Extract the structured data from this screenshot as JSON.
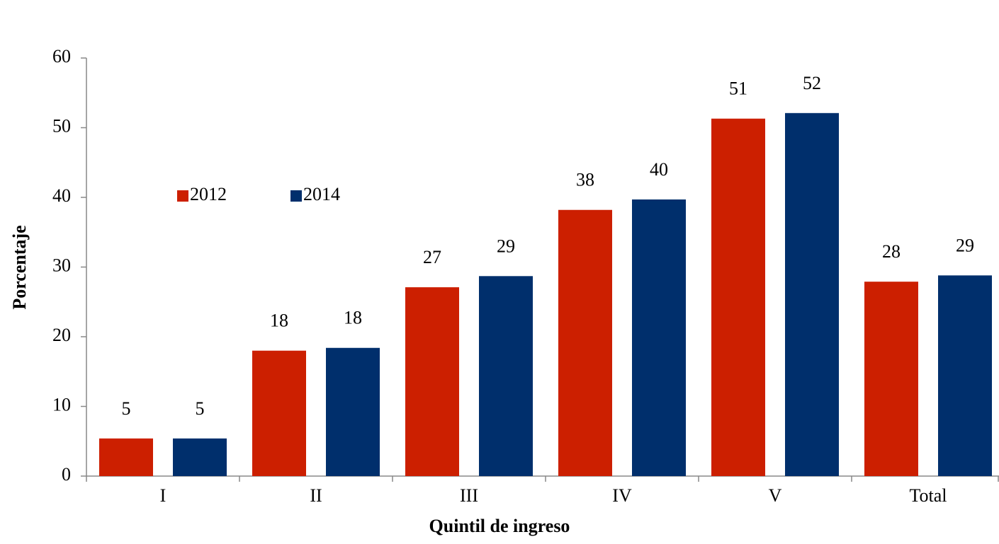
{
  "chart_data": {
    "type": "bar",
    "x_label": "Quintil de ingreso",
    "y_label": "Porcentaje",
    "categories": [
      "I",
      "II",
      "III",
      "IV",
      "V",
      "Total"
    ],
    "series": [
      {
        "name": "2012",
        "color": "#cc1f00",
        "values": [
          5.4,
          18.0,
          27.1,
          38.2,
          51.3,
          27.9
        ],
        "value_labels": [
          "5",
          "18",
          "27",
          "38",
          "51",
          "28"
        ]
      },
      {
        "name": "2014",
        "color": "#002f6c",
        "values": [
          5.4,
          18.4,
          28.7,
          39.7,
          52.1,
          28.8
        ],
        "value_labels": [
          "5",
          "18",
          "29",
          "40",
          "52",
          "29"
        ]
      }
    ],
    "ylim": [
      0,
      60
    ],
    "yticks": [
      0,
      10,
      20,
      30,
      40,
      50,
      60
    ],
    "grid": false,
    "legend": "upper left"
  }
}
